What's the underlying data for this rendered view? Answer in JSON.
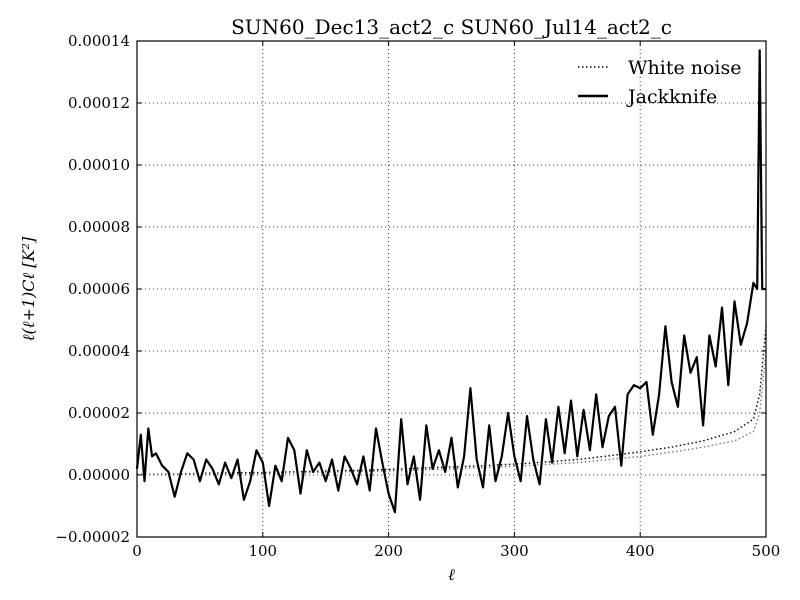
{
  "chart_data": {
    "type": "line",
    "title": "SUN60_Dec13_act2_c SUN60_Jul14_act2_c",
    "xlabel": "ℓ",
    "ylabel": "ℓ(ℓ+1)Cℓ [K²]",
    "xlim": [
      0,
      500
    ],
    "ylim": [
      -2e-05,
      0.00014
    ],
    "x_ticks": [
      0,
      100,
      200,
      300,
      400,
      500
    ],
    "x_tick_labels": [
      "0",
      "100",
      "200",
      "300",
      "400",
      "500"
    ],
    "y_ticks": [
      -2e-05,
      0,
      2e-05,
      4e-05,
      6e-05,
      8e-05,
      0.0001,
      0.00012,
      0.00014
    ],
    "y_tick_labels": [
      "−0.00002",
      "0.00000",
      "0.00002",
      "0.00004",
      "0.00006",
      "0.00008",
      "0.00010",
      "0.00012",
      "0.00014"
    ],
    "grid": true,
    "legend_position": "top-right",
    "series": [
      {
        "name": "White noise",
        "style": "dotted",
        "color": "#000000",
        "x": [
          0,
          25,
          50,
          75,
          100,
          125,
          150,
          175,
          200,
          225,
          250,
          275,
          300,
          325,
          350,
          375,
          400,
          425,
          450,
          475,
          490,
          495,
          500
        ],
        "y": [
          2e-07,
          3e-07,
          5e-07,
          7e-07,
          8e-07,
          1e-06,
          1.3e-06,
          1.5e-06,
          1.8e-06,
          2.2e-06,
          2.6e-06,
          3e-06,
          3.5e-06,
          4.2e-06,
          5e-06,
          6.2e-06,
          7.5e-06,
          9e-06,
          1.1e-05,
          1.4e-05,
          1.8e-05,
          2.6e-05,
          4.8e-05
        ]
      },
      {
        "name": "",
        "style": "dotted",
        "color": "#777777",
        "x": [
          0,
          25,
          50,
          75,
          100,
          125,
          150,
          175,
          200,
          225,
          250,
          275,
          300,
          325,
          350,
          375,
          400,
          425,
          450,
          475,
          490,
          495,
          500
        ],
        "y": [
          1e-07,
          2e-07,
          3e-07,
          4e-07,
          5e-07,
          7e-07,
          9e-07,
          1.1e-06,
          1.3e-06,
          1.6e-06,
          2e-06,
          2.4e-06,
          2.8e-06,
          3.4e-06,
          4e-06,
          5e-06,
          6e-06,
          7.4e-06,
          9e-06,
          1.1e-05,
          1.4e-05,
          2e-05,
          4e-05
        ]
      },
      {
        "name": "Jackknife",
        "style": "solid",
        "color": "#000000",
        "x": [
          0,
          3,
          6,
          9,
          12,
          15,
          20,
          25,
          30,
          35,
          40,
          45,
          50,
          55,
          60,
          65,
          70,
          75,
          80,
          85,
          90,
          95,
          100,
          105,
          110,
          115,
          120,
          125,
          130,
          135,
          140,
          145,
          150,
          155,
          160,
          165,
          170,
          175,
          180,
          185,
          190,
          195,
          200,
          205,
          210,
          215,
          220,
          225,
          230,
          235,
          240,
          245,
          250,
          255,
          260,
          265,
          270,
          275,
          280,
          285,
          290,
          295,
          300,
          305,
          310,
          315,
          320,
          325,
          330,
          335,
          340,
          345,
          350,
          355,
          360,
          365,
          370,
          375,
          380,
          385,
          390,
          395,
          400,
          405,
          410,
          415,
          420,
          425,
          430,
          435,
          440,
          445,
          450,
          455,
          460,
          465,
          470,
          475,
          480,
          485,
          490,
          493,
          495,
          497,
          500
        ],
        "y": [
          2e-06,
          1.3e-05,
          -2e-06,
          1.5e-05,
          6e-06,
          7e-06,
          3e-06,
          1e-06,
          -7e-06,
          1e-06,
          7e-06,
          5e-06,
          -2e-06,
          5e-06,
          2e-06,
          -3e-06,
          4e-06,
          -1e-06,
          5e-06,
          -8e-06,
          -2e-06,
          8e-06,
          4e-06,
          -1e-05,
          3e-06,
          -2e-06,
          1.2e-05,
          8e-06,
          -6e-06,
          8e-06,
          1e-06,
          4e-06,
          -2e-06,
          5e-06,
          -5e-06,
          6e-06,
          2e-06,
          -3e-06,
          6e-06,
          -5e-06,
          1.5e-05,
          4e-06,
          -6e-06,
          -1.2e-05,
          1.8e-05,
          -3e-06,
          6e-06,
          -8e-06,
          1.6e-05,
          2e-06,
          8e-06,
          1e-06,
          1.2e-05,
          -4e-06,
          6e-06,
          2.8e-05,
          5e-06,
          -4e-06,
          1.6e-05,
          -2e-06,
          6e-06,
          2e-05,
          6e-06,
          -2e-06,
          1.9e-05,
          5e-06,
          -3e-06,
          1.8e-05,
          4e-06,
          2.2e-05,
          7e-06,
          2.4e-05,
          6e-06,
          2.1e-05,
          8e-06,
          2.6e-05,
          9e-06,
          1.9e-05,
          2.2e-05,
          3e-06,
          2.6e-05,
          2.9e-05,
          2.8e-05,
          3e-05,
          1.3e-05,
          2.6e-05,
          4.8e-05,
          3e-05,
          2.2e-05,
          4.5e-05,
          3.3e-05,
          3.8e-05,
          1.6e-05,
          4.5e-05,
          3.5e-05,
          5.4e-05,
          2.9e-05,
          5.6e-05,
          4.2e-05,
          4.9e-05,
          6.2e-05,
          6e-05,
          0.000137,
          6e-05,
          6e-05
        ]
      }
    ]
  }
}
